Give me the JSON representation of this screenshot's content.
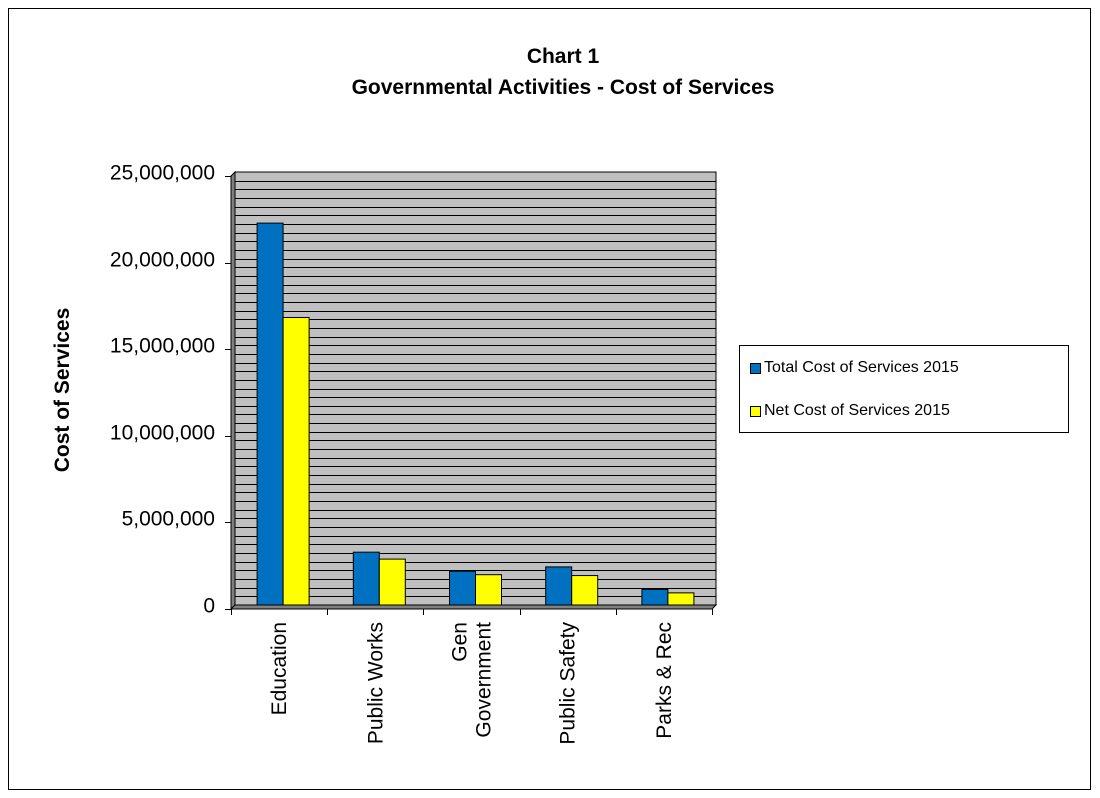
{
  "chart_data": {
    "type": "bar",
    "title": "Chart 1",
    "subtitle": "Governmental Activities - Cost of Services",
    "xlabel": "",
    "ylabel": "Cost of Services",
    "categories": [
      [
        "Education"
      ],
      [
        "Public Works"
      ],
      [
        "Gen",
        "Government"
      ],
      [
        "Public Safety"
      ],
      [
        "Parks & Rec"
      ]
    ],
    "series": [
      {
        "name": "Total Cost of Services 2015",
        "color": "#0070C0",
        "values": [
          22050000,
          3050000,
          1950000,
          2200000,
          900000
        ]
      },
      {
        "name": "Net Cost of Services 2015",
        "color": "#FFFF00",
        "values": [
          16600000,
          2650000,
          1750000,
          1700000,
          700000
        ]
      }
    ],
    "ylim": [
      0,
      25000000
    ],
    "yticks": [
      0,
      5000000,
      10000000,
      15000000,
      20000000,
      25000000
    ],
    "ytick_labels": [
      "0",
      "5,000,000",
      "10,000,000",
      "15,000,000",
      "20,000,000",
      "25,000,000"
    ],
    "grid": true,
    "plot_background": "#C0C0C0",
    "legend_position": "right"
  }
}
